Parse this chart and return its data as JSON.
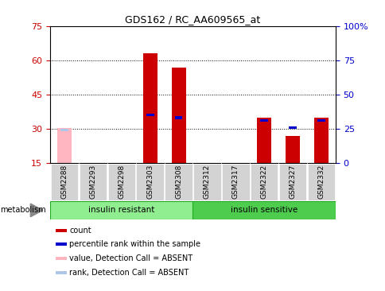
{
  "title": "GDS162 / RC_AA609565_at",
  "samples": [
    "GSM2288",
    "GSM2293",
    "GSM2298",
    "GSM2303",
    "GSM2308",
    "GSM2312",
    "GSM2317",
    "GSM2322",
    "GSM2327",
    "GSM2332"
  ],
  "count_values": [
    30.5,
    0,
    0,
    63,
    57,
    0,
    0,
    35,
    27,
    35
  ],
  "rank_values": [
    24,
    0,
    0,
    35,
    33,
    0,
    0,
    31,
    26,
    31
  ],
  "absent_count": [
    30.5,
    0,
    0,
    0,
    0,
    0,
    0,
    0,
    0,
    0
  ],
  "absent_rank": [
    24,
    0,
    0,
    0,
    0,
    0,
    0,
    0,
    0,
    0
  ],
  "left_ylim": [
    15,
    75
  ],
  "right_ylim": [
    0,
    100
  ],
  "left_yticks": [
    15,
    30,
    45,
    60,
    75
  ],
  "right_yticks": [
    0,
    25,
    50,
    75,
    100
  ],
  "right_yticklabels": [
    "0",
    "25",
    "50",
    "75",
    "100%"
  ],
  "group1_label": "insulin resistant",
  "group2_label": "insulin sensitive",
  "group1_indices": [
    0,
    1,
    2,
    3,
    4
  ],
  "group2_indices": [
    5,
    6,
    7,
    8,
    9
  ],
  "group1_color": "#90ee90",
  "group2_color": "#4dcc4d",
  "bar_width": 0.5,
  "count_color": "#cc0000",
  "rank_color": "#0000cc",
  "absent_count_color": "#ffb6c1",
  "absent_rank_color": "#aec6e8",
  "ylabel_left_color": "#cc0000",
  "ylabel_right_color": "#0000cc",
  "grid_color": "#000000",
  "bg_color": "#ffffff",
  "tick_bg_color": "#d3d3d3",
  "legend_items": [
    {
      "label": "count",
      "color": "#cc0000"
    },
    {
      "label": "percentile rank within the sample",
      "color": "#0000cc"
    },
    {
      "label": "value, Detection Call = ABSENT",
      "color": "#ffb6c1"
    },
    {
      "label": "rank, Detection Call = ABSENT",
      "color": "#aec6e8"
    }
  ]
}
